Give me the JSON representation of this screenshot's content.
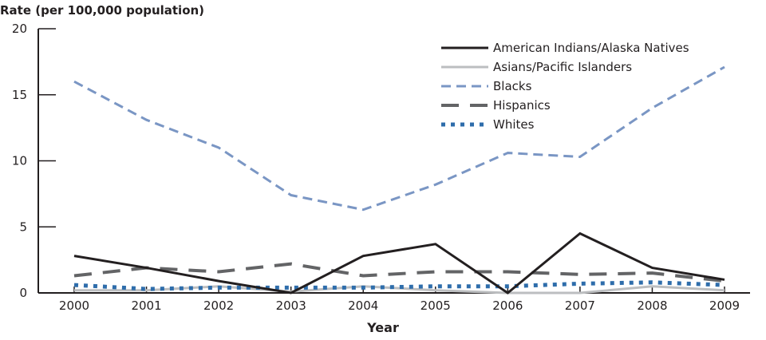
{
  "chart_data": {
    "type": "line",
    "title": "",
    "xlabel": "Year",
    "ylabel": "Rate (per 100,000 population)",
    "x": [
      2000,
      2001,
      2002,
      2003,
      2004,
      2005,
      2006,
      2007,
      2008,
      2009
    ],
    "xticks": [
      "2000",
      "2001",
      "2002",
      "2003",
      "2004",
      "2005",
      "2006",
      "2007",
      "2008",
      "2009"
    ],
    "yticks": [
      "0",
      "5",
      "10",
      "15",
      "20"
    ],
    "ylim": [
      0,
      20
    ],
    "grid": false,
    "legend_position": "top-right",
    "series": [
      {
        "name": "American Indians/Alaska Natives",
        "color": "#231f20",
        "style": "solid",
        "values": [
          2.8,
          1.9,
          0.9,
          0.0,
          2.8,
          3.7,
          0.0,
          4.5,
          1.9,
          1.0
        ]
      },
      {
        "name": "Asians/Pacific Islanders",
        "color": "#bcbec0",
        "style": "solid",
        "values": [
          0.2,
          0.2,
          0.5,
          0.1,
          0.5,
          0.2,
          0.0,
          0.0,
          0.5,
          0.2
        ]
      },
      {
        "name": "Blacks",
        "color": "#7a96c4",
        "style": "dashed",
        "values": [
          16.0,
          13.1,
          11.0,
          7.4,
          6.3,
          8.2,
          10.6,
          10.3,
          14.0,
          17.1
        ]
      },
      {
        "name": "Hispanics",
        "color": "#636466",
        "style": "longdash",
        "values": [
          1.3,
          1.9,
          1.6,
          2.2,
          1.3,
          1.6,
          1.6,
          1.4,
          1.5,
          0.9
        ]
      },
      {
        "name": "Whites",
        "color": "#2e6dab",
        "style": "dotted",
        "values": [
          0.6,
          0.3,
          0.4,
          0.4,
          0.4,
          0.5,
          0.5,
          0.7,
          0.8,
          0.6
        ]
      }
    ]
  }
}
